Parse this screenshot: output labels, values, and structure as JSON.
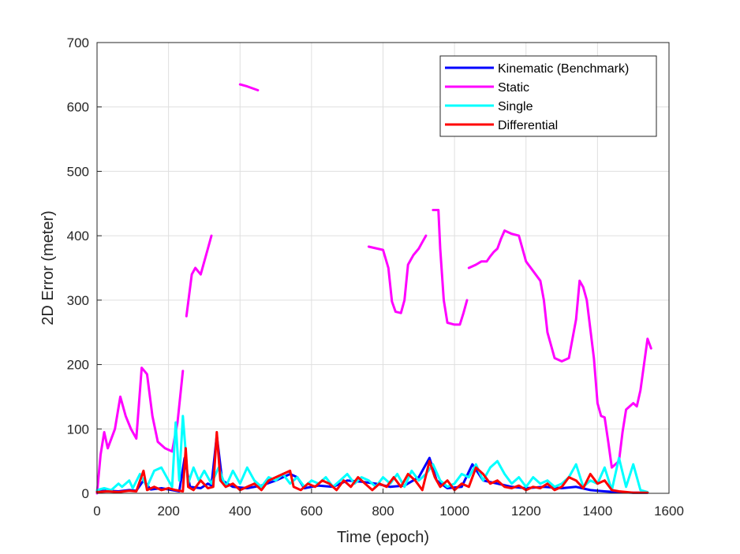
{
  "chart_data": {
    "type": "line",
    "title": "",
    "xlabel": "Time (epoch)",
    "ylabel": "2D Error (meter)",
    "xlim": [
      0,
      1600
    ],
    "ylim": [
      0,
      700
    ],
    "xticks": [
      0,
      200,
      400,
      600,
      800,
      1000,
      1200,
      1400,
      1600
    ],
    "yticks": [
      0,
      100,
      200,
      300,
      400,
      500,
      600,
      700
    ],
    "grid": true,
    "legend_position": "top-right",
    "series": [
      {
        "name": "Kinematic (Benchmark)",
        "color": "#0000ff",
        "values": [
          [
            0,
            3
          ],
          [
            30,
            4
          ],
          [
            60,
            3
          ],
          [
            90,
            5
          ],
          [
            110,
            4
          ],
          [
            130,
            20
          ],
          [
            150,
            6
          ],
          [
            180,
            8
          ],
          [
            210,
            5
          ],
          [
            230,
            3
          ],
          [
            245,
            55
          ],
          [
            260,
            10
          ],
          [
            290,
            8
          ],
          [
            310,
            15
          ],
          [
            320,
            12
          ],
          [
            335,
            90
          ],
          [
            350,
            20
          ],
          [
            380,
            10
          ],
          [
            420,
            8
          ],
          [
            460,
            12
          ],
          [
            500,
            20
          ],
          [
            540,
            30
          ],
          [
            560,
            25
          ],
          [
            580,
            8
          ],
          [
            620,
            12
          ],
          [
            660,
            10
          ],
          [
            700,
            20
          ],
          [
            740,
            18
          ],
          [
            780,
            15
          ],
          [
            820,
            10
          ],
          [
            860,
            12
          ],
          [
            900,
            25
          ],
          [
            930,
            55
          ],
          [
            950,
            20
          ],
          [
            980,
            8
          ],
          [
            1020,
            10
          ],
          [
            1050,
            45
          ],
          [
            1080,
            20
          ],
          [
            1120,
            15
          ],
          [
            1160,
            10
          ],
          [
            1200,
            8
          ],
          [
            1250,
            10
          ],
          [
            1300,
            8
          ],
          [
            1340,
            10
          ],
          [
            1380,
            5
          ],
          [
            1420,
            3
          ],
          [
            1450,
            2
          ],
          [
            1500,
            1
          ],
          [
            1540,
            1
          ]
        ]
      },
      {
        "name": "Static",
        "color": "#ff00ff",
        "segments": [
          [
            [
              0,
              0
            ],
            [
              10,
              60
            ],
            [
              20,
              95
            ],
            [
              30,
              70
            ],
            [
              50,
              100
            ],
            [
              65,
              150
            ],
            [
              80,
              120
            ],
            [
              95,
              100
            ],
            [
              110,
              85
            ],
            [
              125,
              195
            ],
            [
              140,
              185
            ],
            [
              155,
              120
            ],
            [
              170,
              80
            ],
            [
              190,
              70
            ],
            [
              210,
              65
            ],
            [
              225,
              110
            ],
            [
              240,
              190
            ]
          ],
          [
            [
              250,
              275
            ],
            [
              265,
              340
            ],
            [
              275,
              350
            ],
            [
              290,
              340
            ],
            [
              310,
              380
            ],
            [
              320,
              400
            ]
          ],
          [
            [
              400,
              635
            ],
            [
              420,
              632
            ],
            [
              450,
              626
            ]
          ],
          [
            [
              760,
              383
            ],
            [
              800,
              378
            ],
            [
              815,
              350
            ],
            [
              825,
              298
            ],
            [
              835,
              282
            ],
            [
              850,
              280
            ],
            [
              860,
              300
            ],
            [
              870,
              355
            ],
            [
              885,
              370
            ],
            [
              900,
              380
            ],
            [
              910,
              390
            ],
            [
              920,
              400
            ]
          ],
          [
            [
              940,
              440
            ],
            [
              955,
              440
            ],
            [
              960,
              380
            ],
            [
              970,
              300
            ],
            [
              980,
              265
            ],
            [
              1000,
              262
            ],
            [
              1015,
              262
            ],
            [
              1025,
              280
            ],
            [
              1035,
              300
            ]
          ],
          [
            [
              1040,
              350
            ],
            [
              1060,
              355
            ],
            [
              1075,
              360
            ],
            [
              1090,
              360
            ],
            [
              1100,
              368
            ],
            [
              1110,
              375
            ],
            [
              1120,
              380
            ],
            [
              1130,
              395
            ],
            [
              1140,
              408
            ],
            [
              1160,
              403
            ],
            [
              1180,
              400
            ],
            [
              1200,
              360
            ],
            [
              1240,
              330
            ],
            [
              1250,
              300
            ],
            [
              1260,
              250
            ],
            [
              1280,
              210
            ],
            [
              1300,
              205
            ],
            [
              1320,
              210
            ],
            [
              1340,
              270
            ],
            [
              1350,
              330
            ],
            [
              1360,
              320
            ],
            [
              1370,
              300
            ],
            [
              1390,
              210
            ],
            [
              1400,
              140
            ],
            [
              1410,
              120
            ],
            [
              1420,
              118
            ],
            [
              1430,
              80
            ],
            [
              1440,
              40
            ],
            [
              1460,
              50
            ],
            [
              1470,
              95
            ],
            [
              1480,
              130
            ],
            [
              1500,
              140
            ],
            [
              1510,
              135
            ],
            [
              1520,
              160
            ],
            [
              1530,
              200
            ],
            [
              1540,
              240
            ],
            [
              1550,
              225
            ]
          ]
        ]
      },
      {
        "name": "Single",
        "color": "#00ffff",
        "values": [
          [
            0,
            5
          ],
          [
            20,
            8
          ],
          [
            40,
            5
          ],
          [
            60,
            15
          ],
          [
            70,
            10
          ],
          [
            90,
            20
          ],
          [
            100,
            8
          ],
          [
            120,
            30
          ],
          [
            140,
            10
          ],
          [
            160,
            35
          ],
          [
            180,
            40
          ],
          [
            200,
            20
          ],
          [
            210,
            10
          ],
          [
            220,
            110
          ],
          [
            230,
            20
          ],
          [
            240,
            120
          ],
          [
            255,
            15
          ],
          [
            270,
            40
          ],
          [
            285,
            20
          ],
          [
            300,
            35
          ],
          [
            320,
            15
          ],
          [
            340,
            40
          ],
          [
            360,
            10
          ],
          [
            380,
            35
          ],
          [
            400,
            15
          ],
          [
            420,
            40
          ],
          [
            440,
            20
          ],
          [
            460,
            10
          ],
          [
            480,
            25
          ],
          [
            500,
            20
          ],
          [
            520,
            30
          ],
          [
            540,
            15
          ],
          [
            560,
            25
          ],
          [
            580,
            10
          ],
          [
            600,
            20
          ],
          [
            620,
            15
          ],
          [
            640,
            25
          ],
          [
            660,
            10
          ],
          [
            680,
            20
          ],
          [
            700,
            30
          ],
          [
            720,
            15
          ],
          [
            740,
            25
          ],
          [
            760,
            20
          ],
          [
            780,
            10
          ],
          [
            800,
            25
          ],
          [
            820,
            15
          ],
          [
            840,
            30
          ],
          [
            860,
            10
          ],
          [
            880,
            35
          ],
          [
            900,
            20
          ],
          [
            920,
            30
          ],
          [
            940,
            45
          ],
          [
            960,
            20
          ],
          [
            980,
            10
          ],
          [
            1000,
            15
          ],
          [
            1020,
            30
          ],
          [
            1040,
            25
          ],
          [
            1060,
            45
          ],
          [
            1080,
            20
          ],
          [
            1100,
            40
          ],
          [
            1120,
            50
          ],
          [
            1140,
            30
          ],
          [
            1160,
            15
          ],
          [
            1180,
            25
          ],
          [
            1200,
            10
          ],
          [
            1220,
            25
          ],
          [
            1240,
            15
          ],
          [
            1260,
            20
          ],
          [
            1280,
            10
          ],
          [
            1300,
            15
          ],
          [
            1320,
            25
          ],
          [
            1340,
            45
          ],
          [
            1360,
            10
          ],
          [
            1380,
            20
          ],
          [
            1400,
            15
          ],
          [
            1420,
            40
          ],
          [
            1440,
            5
          ],
          [
            1460,
            55
          ],
          [
            1480,
            10
          ],
          [
            1500,
            45
          ],
          [
            1520,
            5
          ],
          [
            1540,
            2
          ]
        ]
      },
      {
        "name": "Differential",
        "color": "#ff0000",
        "values": [
          [
            0,
            2
          ],
          [
            30,
            3
          ],
          [
            60,
            2
          ],
          [
            90,
            4
          ],
          [
            110,
            3
          ],
          [
            130,
            35
          ],
          [
            140,
            5
          ],
          [
            160,
            10
          ],
          [
            180,
            5
          ],
          [
            200,
            8
          ],
          [
            220,
            5
          ],
          [
            240,
            3
          ],
          [
            248,
            70
          ],
          [
            255,
            10
          ],
          [
            270,
            5
          ],
          [
            290,
            20
          ],
          [
            310,
            8
          ],
          [
            325,
            10
          ],
          [
            335,
            95
          ],
          [
            345,
            20
          ],
          [
            360,
            10
          ],
          [
            380,
            15
          ],
          [
            400,
            5
          ],
          [
            420,
            10
          ],
          [
            440,
            15
          ],
          [
            460,
            5
          ],
          [
            480,
            20
          ],
          [
            500,
            25
          ],
          [
            520,
            30
          ],
          [
            540,
            35
          ],
          [
            550,
            10
          ],
          [
            570,
            5
          ],
          [
            590,
            15
          ],
          [
            610,
            10
          ],
          [
            630,
            20
          ],
          [
            650,
            15
          ],
          [
            670,
            5
          ],
          [
            690,
            20
          ],
          [
            710,
            10
          ],
          [
            730,
            25
          ],
          [
            750,
            15
          ],
          [
            770,
            5
          ],
          [
            790,
            15
          ],
          [
            810,
            10
          ],
          [
            830,
            25
          ],
          [
            850,
            10
          ],
          [
            870,
            30
          ],
          [
            890,
            20
          ],
          [
            910,
            5
          ],
          [
            930,
            50
          ],
          [
            945,
            25
          ],
          [
            960,
            10
          ],
          [
            980,
            20
          ],
          [
            1000,
            5
          ],
          [
            1020,
            15
          ],
          [
            1040,
            10
          ],
          [
            1060,
            40
          ],
          [
            1080,
            30
          ],
          [
            1100,
            15
          ],
          [
            1120,
            20
          ],
          [
            1140,
            10
          ],
          [
            1160,
            8
          ],
          [
            1180,
            12
          ],
          [
            1200,
            5
          ],
          [
            1220,
            10
          ],
          [
            1240,
            8
          ],
          [
            1260,
            15
          ],
          [
            1280,
            5
          ],
          [
            1300,
            10
          ],
          [
            1320,
            25
          ],
          [
            1340,
            20
          ],
          [
            1360,
            8
          ],
          [
            1380,
            30
          ],
          [
            1400,
            15
          ],
          [
            1420,
            20
          ],
          [
            1440,
            5
          ],
          [
            1460,
            3
          ],
          [
            1480,
            2
          ],
          [
            1500,
            1
          ],
          [
            1520,
            1
          ],
          [
            1540,
            1
          ]
        ]
      }
    ]
  }
}
